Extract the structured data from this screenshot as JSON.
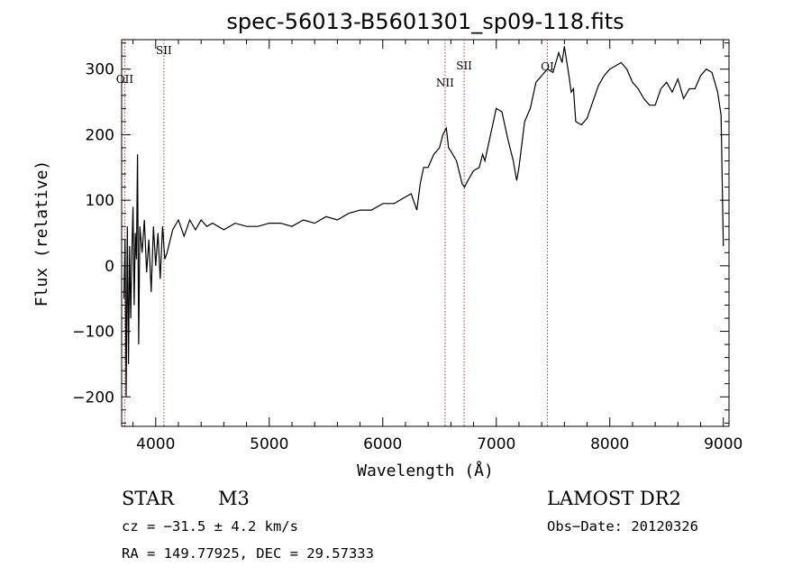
{
  "chart_data": {
    "type": "line",
    "title": "spec-56013-B5601301_sp09-118.fits",
    "xlabel": "Wavelength (Å)",
    "ylabel": "Flux (relative)",
    "xlim": [
      3700,
      9050
    ],
    "ylim": [
      -245,
      345
    ],
    "xticks": [
      4000,
      5000,
      6000,
      7000,
      8000,
      9000
    ],
    "xtick_labels": [
      "4000",
      "5000",
      "6000",
      "7000",
      "8000",
      "9000"
    ],
    "yticks": [
      -200,
      -100,
      0,
      100,
      200,
      300
    ],
    "ytick_labels": [
      "−200",
      "−100",
      "0",
      "100",
      "200",
      "300"
    ],
    "grid": false,
    "series": [
      {
        "x": [
          3720,
          3730,
          3740,
          3750,
          3760,
          3770,
          3780,
          3790,
          3800,
          3810,
          3820,
          3830,
          3840,
          3850,
          3860,
          3880,
          3900,
          3920,
          3940,
          3960,
          3980,
          4000,
          4020,
          4040,
          4060,
          4080,
          4100,
          4150,
          4200,
          4250,
          4300,
          4350,
          4400,
          4450,
          4500,
          4550,
          4600,
          4700,
          4800,
          4900,
          5000,
          5100,
          5200,
          5300,
          5400,
          5500,
          5600,
          5700,
          5800,
          5900,
          6000,
          6100,
          6150,
          6200,
          6250,
          6300,
          6330,
          6360,
          6400,
          6450,
          6500,
          6530,
          6560,
          6580,
          6600,
          6650,
          6700,
          6720,
          6750,
          6800,
          6850,
          6880,
          6900,
          6950,
          7000,
          7050,
          7100,
          7150,
          7180,
          7200,
          7250,
          7300,
          7350,
          7400,
          7450,
          7500,
          7550,
          7580,
          7600,
          7640,
          7660,
          7680,
          7700,
          7750,
          7800,
          7850,
          7900,
          7950,
          8000,
          8050,
          8100,
          8150,
          8200,
          8250,
          8300,
          8350,
          8400,
          8450,
          8500,
          8550,
          8600,
          8650,
          8700,
          8750,
          8800,
          8850,
          8900,
          8950,
          8980,
          9000
        ],
        "y": [
          -50,
          40,
          -200,
          60,
          -150,
          30,
          -80,
          20,
          90,
          -60,
          50,
          10,
          170,
          -120,
          60,
          20,
          70,
          -10,
          40,
          -40,
          60,
          0,
          50,
          -20,
          60,
          10,
          20,
          55,
          70,
          45,
          70,
          55,
          70,
          60,
          65,
          60,
          55,
          65,
          60,
          60,
          65,
          65,
          60,
          70,
          65,
          75,
          70,
          80,
          85,
          85,
          95,
          95,
          100,
          105,
          110,
          85,
          125,
          150,
          150,
          170,
          180,
          200,
          210,
          180,
          175,
          160,
          125,
          120,
          130,
          145,
          150,
          170,
          160,
          200,
          240,
          235,
          195,
          160,
          130,
          150,
          220,
          240,
          280,
          290,
          300,
          295,
          325,
          310,
          335,
          290,
          265,
          270,
          220,
          215,
          225,
          250,
          275,
          290,
          300,
          305,
          310,
          300,
          280,
          270,
          255,
          245,
          245,
          270,
          280,
          265,
          285,
          255,
          270,
          270,
          290,
          300,
          295,
          265,
          230,
          30
        ]
      }
    ],
    "emission_lines": [
      {
        "label": "OII",
        "wavelength": 3727
      },
      {
        "label": "SII",
        "wavelength": 4072
      },
      {
        "label": "NII",
        "wavelength": 6549
      },
      {
        "label": "SII",
        "wavelength": 6717
      },
      {
        "label": "OI",
        "wavelength": 7450
      }
    ]
  },
  "footer": {
    "object_class": "STAR",
    "subclass": "M3",
    "survey": "LAMOST DR2",
    "cz": "cz = −31.5 ± 4.2 km/s",
    "obs_date": "Obs−Date: 20120326",
    "coords": "RA = 149.77925, DEC =  29.57333"
  }
}
